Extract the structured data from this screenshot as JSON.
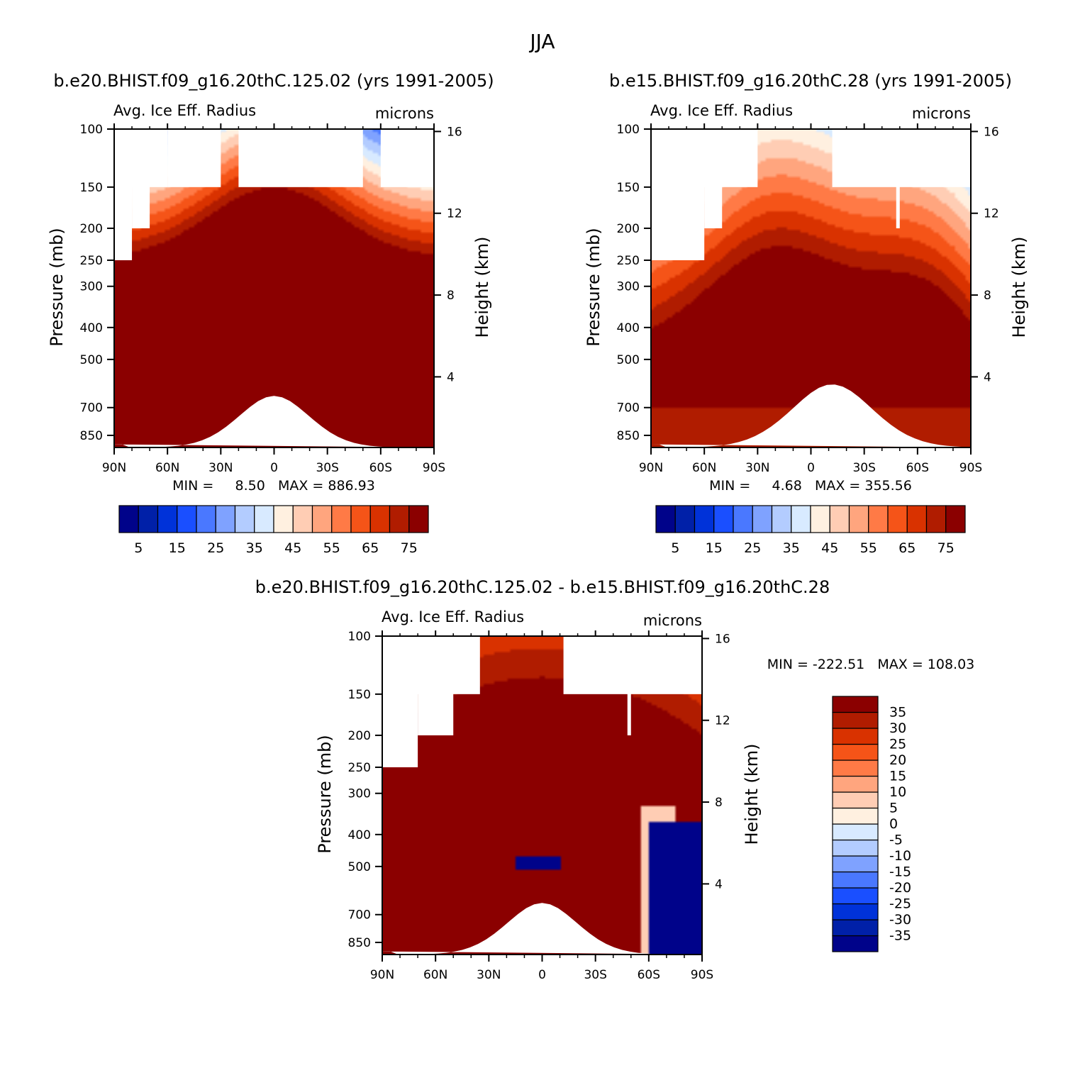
{
  "page_title": "JJA",
  "colors": {
    "page_bg": "#ffffff",
    "missing": "#ffffff",
    "axis": "#000000",
    "palette": [
      "#00038a",
      "#0020a8",
      "#0032d9",
      "#1a4fff",
      "#4a78ff",
      "#7fa2ff",
      "#b3ccff",
      "#d8eaff",
      "#fff0e0",
      "#ffcdb4",
      "#ffa57e",
      "#ff7a46",
      "#f55418",
      "#d93200",
      "#b01c00",
      "#8b0000"
    ]
  },
  "chart_data": [
    {
      "id": "p1",
      "type": "contour",
      "title": "b.e20.BHIST.f09_g16.20thC.125.02 (yrs 1991-2005)",
      "variable_label": "Avg. Ice Eff. Radius",
      "units_label": "microns",
      "xlabel": "",
      "ylabel": "Pressure (mb)",
      "ylabel_right": "Height (km)",
      "x_ticks": [
        "90N",
        "60N",
        "30N",
        "0",
        "30S",
        "60S",
        "90S"
      ],
      "x_tick_values": [
        90,
        60,
        30,
        0,
        -30,
        -60,
        -90
      ],
      "xlim": [
        90,
        -90
      ],
      "y_ticks": [
        100,
        150,
        200,
        250,
        300,
        400,
        500,
        700,
        850
      ],
      "ylim": [
        100,
        925
      ],
      "height_ticks": [
        4,
        8,
        12,
        16
      ],
      "stats": "MIN =     8.50   MAX = 886.93",
      "min": 8.5,
      "max": 886.93,
      "levels": [
        5,
        10,
        15,
        20,
        25,
        30,
        35,
        40,
        45,
        50,
        55,
        60,
        65,
        70,
        75
      ],
      "colorbar": {
        "orientation": "horizontal",
        "labels": [
          "5",
          "15",
          "25",
          "35",
          "45",
          "55",
          "65",
          "75"
        ]
      },
      "top_missing": [
        [
          60,
          90,
          150
        ],
        [
          30,
          60,
          150
        ],
        [
          -50,
          20,
          150
        ],
        [
          -90,
          -60,
          150
        ]
      ],
      "upper_missing": [
        [
          80,
          90,
          250
        ],
        [
          70,
          80,
          200
        ]
      ],
      "ground": [
        [
          -30,
          30,
          650
        ],
        [
          -30,
          30,
          700
        ]
      ]
    },
    {
      "id": "p2",
      "type": "contour",
      "title": "b.e15.BHIST.f09_g16.20thC.28 (yrs 1991-2005)",
      "variable_label": "Avg. Ice Eff. Radius",
      "units_label": "microns",
      "xlabel": "",
      "ylabel": "Pressure (mb)",
      "ylabel_right": "Height (km)",
      "x_ticks": [
        "90N",
        "60N",
        "30N",
        "0",
        "30S",
        "60S",
        "90S"
      ],
      "x_tick_values": [
        90,
        60,
        30,
        0,
        -30,
        -60,
        -90
      ],
      "xlim": [
        90,
        -90
      ],
      "y_ticks": [
        100,
        150,
        200,
        250,
        300,
        400,
        500,
        700,
        850
      ],
      "ylim": [
        100,
        925
      ],
      "height_ticks": [
        4,
        8,
        12,
        16
      ],
      "stats": "MIN =     4.68   MAX = 355.56",
      "min": 4.68,
      "max": 355.56,
      "levels": [
        5,
        10,
        15,
        20,
        25,
        30,
        35,
        40,
        45,
        50,
        55,
        60,
        65,
        70,
        75
      ],
      "colorbar": {
        "orientation": "horizontal",
        "labels": [
          "5",
          "15",
          "25",
          "35",
          "45",
          "55",
          "65",
          "75"
        ]
      },
      "top_missing": [
        [
          30,
          90,
          150
        ],
        [
          -90,
          -12,
          150
        ]
      ],
      "upper_missing": [
        [
          60,
          90,
          250
        ],
        [
          50,
          60,
          200
        ],
        [
          -50,
          -48,
          200
        ]
      ],
      "ground": [
        [
          -60,
          35,
          600
        ]
      ]
    },
    {
      "id": "p3",
      "type": "contour",
      "title": "b.e20.BHIST.f09_g16.20thC.125.02 - b.e15.BHIST.f09_g16.20thC.28",
      "variable_label": "Avg. Ice Eff. Radius",
      "units_label": "microns",
      "xlabel": "",
      "ylabel": "Pressure (mb)",
      "ylabel_right": "Height (km)",
      "x_ticks": [
        "90N",
        "60N",
        "30N",
        "0",
        "30S",
        "60S",
        "90S"
      ],
      "x_tick_values": [
        90,
        60,
        30,
        0,
        -30,
        -60,
        -90
      ],
      "xlim": [
        90,
        -90
      ],
      "y_ticks": [
        100,
        150,
        200,
        250,
        300,
        400,
        500,
        700,
        850
      ],
      "ylim": [
        100,
        925
      ],
      "height_ticks": [
        4,
        8,
        12,
        16
      ],
      "stats": "MIN = -222.51   MAX = 108.03",
      "min": -222.51,
      "max": 108.03,
      "levels": [
        -35,
        -30,
        -25,
        -20,
        -15,
        -10,
        -5,
        0,
        5,
        10,
        15,
        20,
        25,
        30,
        35
      ],
      "colorbar": {
        "orientation": "vertical",
        "labels": [
          "35",
          "30",
          "25",
          "20",
          "15",
          "10",
          "5",
          "0",
          "-5",
          "-10",
          "-15",
          "-20",
          "-25",
          "-30",
          "-35"
        ]
      },
      "top_missing": [
        [
          35,
          90,
          150
        ],
        [
          -90,
          -12,
          150
        ]
      ],
      "upper_missing": [
        [
          70,
          90,
          250
        ],
        [
          50,
          70,
          200
        ],
        [
          -50,
          -48,
          200
        ]
      ],
      "ground": [
        [
          -30,
          30,
          650
        ]
      ]
    }
  ]
}
